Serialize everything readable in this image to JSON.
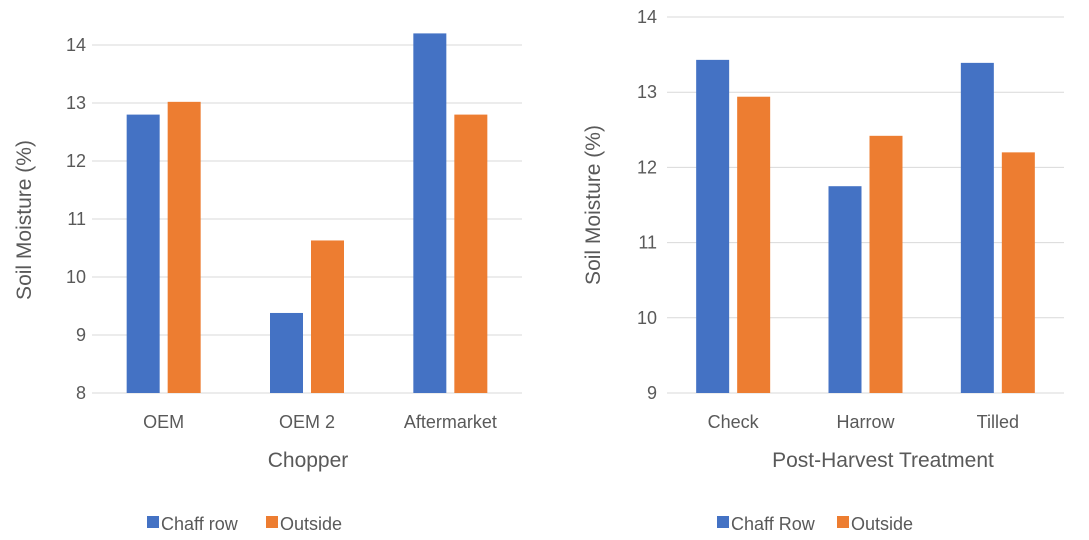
{
  "colors": {
    "series1": "#4472C4",
    "series2": "#ED7D31",
    "grid": "#D9D9D9",
    "text": "#595959"
  },
  "chart_data": [
    {
      "type": "bar",
      "title": "",
      "xlabel": "Chopper",
      "ylabel": "Soil Moisture (%)",
      "ylim": [
        8,
        14
      ],
      "yticks": [
        8,
        9,
        10,
        11,
        12,
        13,
        14
      ],
      "grid": true,
      "legend": "bottom",
      "categories": [
        "OEM",
        "OEM 2",
        "Aftermarket"
      ],
      "series": [
        {
          "name": "Chaff row",
          "values": [
            12.8,
            9.38,
            14.2
          ]
        },
        {
          "name": "Outside",
          "values": [
            13.02,
            10.63,
            12.8
          ]
        }
      ]
    },
    {
      "type": "bar",
      "title": "",
      "xlabel": "Post-Harvest Treatment",
      "ylabel": "Soil Moisture (%)",
      "ylim": [
        9,
        14
      ],
      "yticks": [
        9,
        10,
        11,
        12,
        13,
        14
      ],
      "grid": true,
      "legend": "bottom",
      "categories": [
        "Check",
        "Harrow",
        "Tilled"
      ],
      "series": [
        {
          "name": "Chaff Row",
          "values": [
            13.43,
            11.75,
            13.39
          ]
        },
        {
          "name": "Outside",
          "values": [
            12.94,
            12.42,
            12.2
          ]
        }
      ]
    }
  ]
}
